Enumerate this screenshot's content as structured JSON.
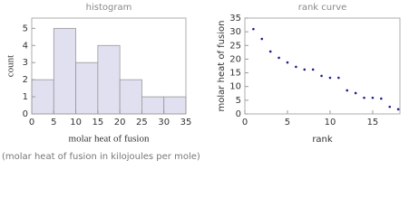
{
  "chart_data": [
    {
      "type": "histogram",
      "title": "histogram",
      "xlabel": "molar heat of fusion",
      "ylabel": "count",
      "bins": [
        0,
        5,
        10,
        15,
        20,
        25,
        30,
        35
      ],
      "values": [
        2,
        5,
        3,
        4,
        2,
        1,
        1
      ],
      "color": "#e0e0f0",
      "xlim": [
        0,
        35
      ],
      "ylim": [
        0,
        5.6
      ],
      "xticks": [
        0,
        5,
        10,
        15,
        20,
        25,
        30,
        35
      ],
      "yticks": [
        0,
        1,
        2,
        3,
        4,
        5
      ]
    },
    {
      "type": "scatter",
      "title": "rank curve",
      "xlabel": "rank",
      "ylabel": "molar heat of fusion",
      "x": [
        1,
        2,
        3,
        4,
        5,
        6,
        7,
        8,
        9,
        10,
        11,
        12,
        13,
        14,
        15,
        16,
        17,
        18
      ],
      "values": [
        31,
        27.4,
        22.8,
        20.5,
        18.8,
        17.2,
        16.2,
        16.2,
        13.9,
        13.2,
        13.2,
        8.6,
        7.6,
        5.9,
        5.9,
        5.6,
        2.6,
        1.7
      ],
      "color": "#1f1f8f",
      "xlim": [
        0,
        18.2
      ],
      "ylim": [
        0,
        35
      ],
      "xticks": [
        0,
        5,
        10,
        15
      ],
      "yticks": [
        0,
        5,
        10,
        15,
        20,
        25,
        30,
        35
      ]
    }
  ],
  "footnote": "(molar heat of fusion in kilojoules per mole)"
}
